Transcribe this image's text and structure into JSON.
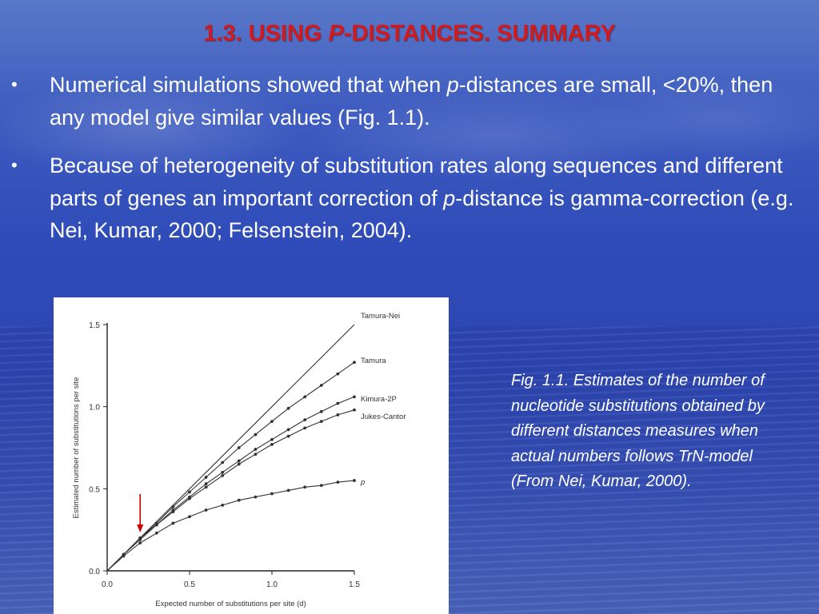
{
  "slide": {
    "title_prefix": "1.3. USING ",
    "title_italic": "P",
    "title_suffix": "-DISTANCES. SUMMARY"
  },
  "bullets": [
    {
      "marker": "•",
      "part1": " Numerical simulations showed that when ",
      "italic": "p",
      "part2": "-distances are small, <20%, then any model give similar values  (Fig. 1.1)."
    },
    {
      "marker": "•",
      "part1": "Because of heterogeneity of substitution rates along sequences and different parts of genes an important correction of ",
      "italic": "p",
      "part2": "-distance is gamma-correction (e.g. Nei, Kumar, 2000; Felsenstein, 2004)."
    }
  ],
  "caption": "Fig. 1.1. Estimates of the number of nucleotide substitutions obtained by different  distances measures when actual numbers follows TrN-model (From Nei, Kumar, 2000).",
  "chart_data": {
    "type": "line",
    "xlabel": "Expected number of substitutions per site (d)",
    "ylabel": "Estimated number of substitutions per site",
    "xlim": [
      0,
      1.5
    ],
    "ylim": [
      0,
      1.5
    ],
    "x_ticks": [
      "0.0",
      "0.5",
      "1.0",
      "1.5"
    ],
    "y_ticks": [
      "0.0",
      "0.5",
      "1.0",
      "1.5"
    ],
    "x": [
      0,
      0.1,
      0.2,
      0.3,
      0.4,
      0.5,
      0.6,
      0.7,
      0.8,
      0.9,
      1.0,
      1.1,
      1.2,
      1.3,
      1.4,
      1.5
    ],
    "series": [
      {
        "name": "Tamura-Nei",
        "values": [
          0,
          0.1,
          0.2,
          0.3,
          0.4,
          0.5,
          0.6,
          0.7,
          0.8,
          0.9,
          1.0,
          1.1,
          1.2,
          1.3,
          1.4,
          1.5
        ],
        "markers": false
      },
      {
        "name": "Tamura",
        "values": [
          0,
          0.1,
          0.2,
          0.29,
          0.39,
          0.48,
          0.57,
          0.66,
          0.75,
          0.83,
          0.91,
          0.99,
          1.06,
          1.13,
          1.2,
          1.27
        ],
        "markers": true
      },
      {
        "name": "Kimura-2P",
        "values": [
          0,
          0.1,
          0.2,
          0.28,
          0.37,
          0.45,
          0.53,
          0.6,
          0.67,
          0.74,
          0.8,
          0.86,
          0.92,
          0.97,
          1.02,
          1.06
        ],
        "markers": true
      },
      {
        "name": "Jukes-Cantor",
        "values": [
          0,
          0.1,
          0.19,
          0.28,
          0.36,
          0.44,
          0.51,
          0.58,
          0.65,
          0.71,
          0.77,
          0.82,
          0.87,
          0.91,
          0.95,
          0.98
        ],
        "markers": true
      },
      {
        "name": "p",
        "values": [
          0,
          0.09,
          0.17,
          0.23,
          0.29,
          0.33,
          0.37,
          0.4,
          0.43,
          0.45,
          0.47,
          0.49,
          0.51,
          0.52,
          0.54,
          0.55
        ],
        "markers": true
      }
    ],
    "annotation": {
      "type": "arrow",
      "x": 0.2,
      "color": "#cc0000"
    },
    "colors": {
      "line": "#333333",
      "axis": "#222222",
      "text": "#333333"
    }
  }
}
